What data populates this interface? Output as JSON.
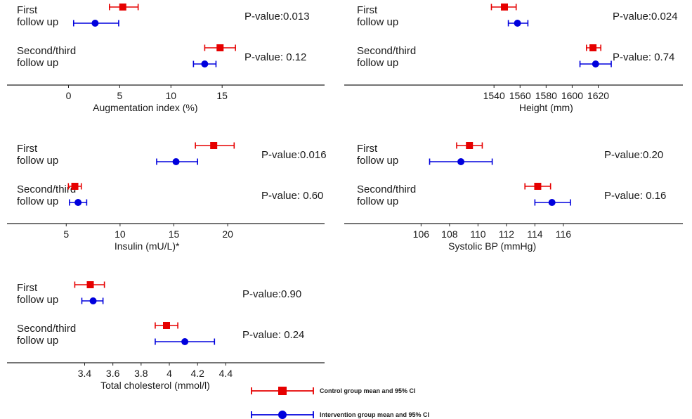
{
  "colors": {
    "control": "#e60000",
    "intervention": "#0000dd",
    "axis": "#222222"
  },
  "chart_data": [
    {
      "type": "forest",
      "xlabel": "Augmentation index (%)",
      "ticks": [
        0,
        5,
        10,
        15
      ],
      "xlim": [
        -6,
        25
      ],
      "rows": [
        {
          "label_lines": [
            "First",
            "follow up"
          ],
          "pvalue": "P-value:0.013",
          "control": {
            "mean": 5.3,
            "low": 4.0,
            "high": 6.8
          },
          "intervention": {
            "mean": 2.6,
            "low": 0.5,
            "high": 4.9
          }
        },
        {
          "label_lines": [
            "Second/third",
            "follow up"
          ],
          "pvalue": "P-value: 0.12",
          "control": {
            "mean": 14.8,
            "low": 13.3,
            "high": 16.3
          },
          "intervention": {
            "mean": 13.3,
            "low": 12.2,
            "high": 14.4
          }
        }
      ]
    },
    {
      "type": "forest",
      "xlabel": "Height (mm)",
      "ticks": [
        1540,
        1560,
        1580,
        1600,
        1620
      ],
      "xlim": [
        1425,
        1685
      ],
      "rows": [
        {
          "label_lines": [
            "First",
            "follow up"
          ],
          "pvalue": "P-value:0.024",
          "control": {
            "mean": 1548,
            "low": 1538,
            "high": 1557
          },
          "intervention": {
            "mean": 1558,
            "low": 1551,
            "high": 1566
          }
        },
        {
          "label_lines": [
            "Second/third",
            "follow up"
          ],
          "pvalue": "P-value: 0.74",
          "control": {
            "mean": 1616,
            "low": 1611,
            "high": 1622
          },
          "intervention": {
            "mean": 1618,
            "low": 1606,
            "high": 1630
          }
        }
      ]
    },
    {
      "type": "forest",
      "xlabel": "Insulin (mU/L)*",
      "ticks": [
        5,
        10,
        15,
        20
      ],
      "xlim": [
        -0.5,
        29
      ],
      "rows": [
        {
          "label_lines": [
            "First",
            "follow up"
          ],
          "pvalue": "P-value:0.016",
          "control": {
            "mean": 18.7,
            "low": 17.0,
            "high": 20.6
          },
          "intervention": {
            "mean": 15.2,
            "low": 13.4,
            "high": 17.2
          }
        },
        {
          "label_lines": [
            "Second/third",
            "follow up"
          ],
          "pvalue": "P-value: 0.60",
          "control": {
            "mean": 5.8,
            "low": 5.2,
            "high": 6.4
          },
          "intervention": {
            "mean": 6.1,
            "low": 5.3,
            "high": 6.9
          }
        }
      ]
    },
    {
      "type": "forest",
      "xlabel": "Systolic BP (mmHg)",
      "ticks": [
        106,
        108,
        110,
        112,
        114,
        116
      ],
      "xlim": [
        100.6,
        124.4
      ],
      "rows": [
        {
          "label_lines": [
            "First",
            "follow up"
          ],
          "pvalue": "P-value:0.20",
          "control": {
            "mean": 109.4,
            "low": 108.5,
            "high": 110.3
          },
          "intervention": {
            "mean": 108.8,
            "low": 106.6,
            "high": 111.0
          }
        },
        {
          "label_lines": [
            "Second/third",
            "follow up"
          ],
          "pvalue": "P-value: 0.16",
          "control": {
            "mean": 114.2,
            "low": 113.3,
            "high": 115.1
          },
          "intervention": {
            "mean": 115.2,
            "low": 114.0,
            "high": 116.5
          }
        }
      ]
    },
    {
      "type": "forest",
      "xlabel": "Total cholesterol (mmol/l)",
      "ticks": [
        "3.4",
        "3.6",
        "3.8",
        "4",
        "4.2",
        "4.4"
      ],
      "xlim": [
        2.85,
        5.1
      ],
      "rows": [
        {
          "label_lines": [
            "First",
            "follow up"
          ],
          "pvalue": "P-value:0.90",
          "control": {
            "mean": 3.44,
            "low": 3.33,
            "high": 3.54
          },
          "intervention": {
            "mean": 3.46,
            "low": 3.38,
            "high": 3.53
          }
        },
        {
          "label_lines": [
            "Second/third",
            "follow up"
          ],
          "pvalue": "P-value: 0.24",
          "control": {
            "mean": 3.98,
            "low": 3.9,
            "high": 4.06
          },
          "intervention": {
            "mean": 4.11,
            "low": 3.9,
            "high": 4.32
          }
        }
      ]
    }
  ],
  "legend": [
    {
      "series": "control",
      "label": "Control group mean and 95% CI"
    },
    {
      "series": "intervention",
      "label": "Intervention group mean and 95% CI"
    }
  ]
}
